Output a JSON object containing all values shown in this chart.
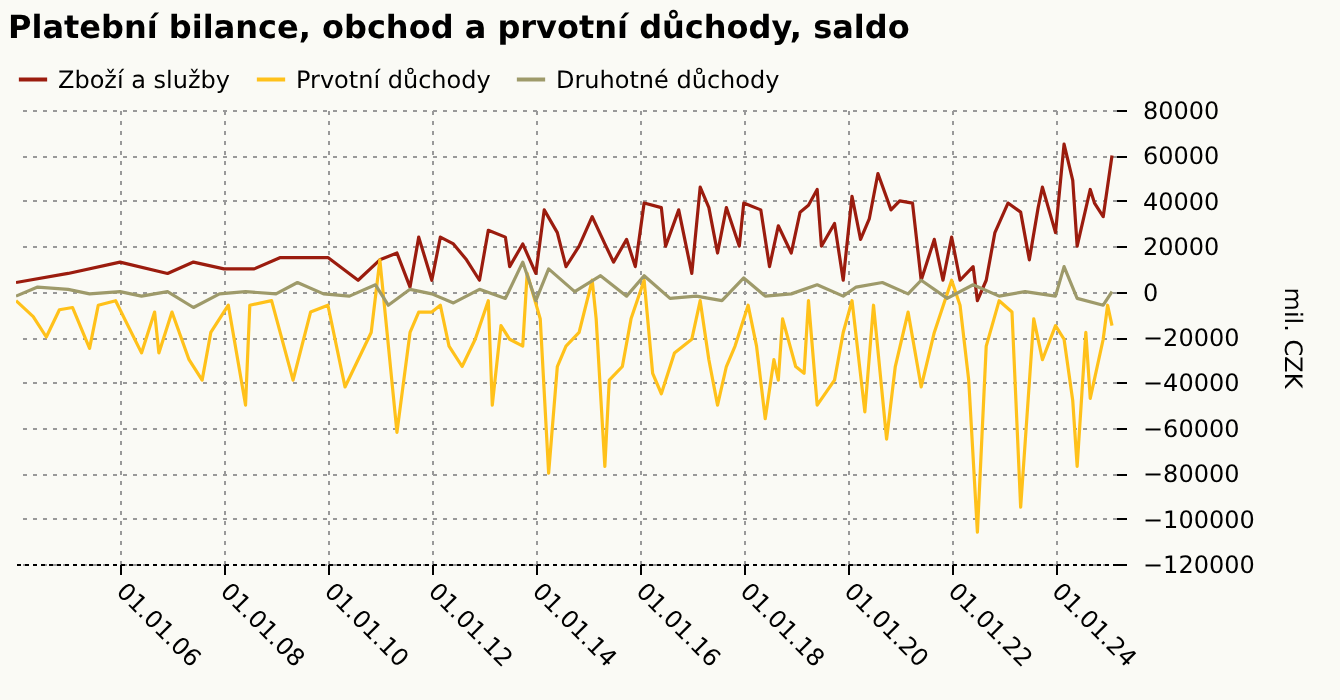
{
  "chart_data": {
    "type": "line",
    "title": "Platební bilance, obchod a prvotní důchody, saldo",
    "ylabel": "mil. CZK",
    "xlim": [
      "2004-01",
      "2025-03"
    ],
    "ylim": [
      -120000,
      80000
    ],
    "yticks": [
      -120000,
      -100000,
      -80000,
      -60000,
      -40000,
      -20000,
      0,
      20000,
      40000,
      60000,
      80000
    ],
    "xticks": [
      {
        "value": "2006-01-01",
        "label": "01.01.06"
      },
      {
        "value": "2008-01-01",
        "label": "01.01.08"
      },
      {
        "value": "2010-01-01",
        "label": "01.01.10"
      },
      {
        "value": "2012-01-01",
        "label": "01.01.12"
      },
      {
        "value": "2014-01-01",
        "label": "01.01.14"
      },
      {
        "value": "2016-01-01",
        "label": "01.01.16"
      },
      {
        "value": "2018-01-01",
        "label": "01.01.18"
      },
      {
        "value": "2020-01-01",
        "label": "01.01.20"
      },
      {
        "value": "2022-01-01",
        "label": "01.01.22"
      },
      {
        "value": "2024-01-01",
        "label": "01.01.24"
      }
    ],
    "grid": true,
    "legend": "top left",
    "line_style": "solid",
    "series": [
      {
        "name": "Zboží a služby",
        "color": "#9b1c0e",
        "x": [
          "2004-01",
          "2005-01",
          "2006-01",
          "2006-12",
          "2007-06",
          "2008-01",
          "2008-08",
          "2009-02",
          "2010-01",
          "2010-08",
          "2011-01",
          "2011-05",
          "2011-08",
          "2011-10",
          "2012-01",
          "2012-03",
          "2012-06",
          "2012-09",
          "2012-12",
          "2013-02",
          "2013-06",
          "2013-07",
          "2013-10",
          "2014-01",
          "2014-03",
          "2014-06",
          "2014-08",
          "2014-11",
          "2015-02",
          "2015-05",
          "2015-07",
          "2015-10",
          "2015-12",
          "2016-02",
          "2016-06",
          "2016-07",
          "2016-10",
          "2017-01",
          "2017-03",
          "2017-05",
          "2017-07",
          "2017-09",
          "2017-12",
          "2018-01",
          "2018-05",
          "2018-07",
          "2018-09",
          "2018-12",
          "2019-02",
          "2019-04",
          "2019-06",
          "2019-07",
          "2019-10",
          "2019-12",
          "2020-02",
          "2020-04",
          "2020-06",
          "2020-08",
          "2020-11",
          "2021-01",
          "2021-04",
          "2021-06",
          "2021-09",
          "2021-11",
          "2022-01",
          "2022-03",
          "2022-06",
          "2022-07",
          "2022-09",
          "2022-11",
          "2023-02",
          "2023-05",
          "2023-07",
          "2023-09",
          "2023-10",
          "2024-01",
          "2024-03",
          "2024-05",
          "2024-06",
          "2024-09",
          "2024-10",
          "2024-12",
          "2025-02"
        ],
        "values": [
          4000,
          8000,
          13000,
          8000,
          13000,
          10000,
          10000,
          15000,
          15000,
          5000,
          14000,
          17000,
          2000,
          24000,
          5000,
          24000,
          21000,
          14000,
          5000,
          27000,
          24000,
          11000,
          21000,
          8000,
          36000,
          26000,
          11000,
          20000,
          33000,
          21000,
          13000,
          23000,
          11000,
          39000,
          37000,
          20000,
          36000,
          8000,
          46000,
          37000,
          17000,
          37000,
          20000,
          39000,
          36000,
          11000,
          29000,
          17000,
          35000,
          38000,
          45000,
          20000,
          30000,
          5000,
          42000,
          23000,
          32000,
          52000,
          36000,
          40000,
          39000,
          5000,
          23000,
          5000,
          24000,
          5000,
          11000,
          -4000,
          5000,
          26000,
          39000,
          35000,
          14000,
          37000,
          46000,
          26000,
          65000,
          49000,
          20000,
          45000,
          39000,
          33000,
          60000
        ]
      },
      {
        "name": "Prvotní důchody",
        "color": "#ffc11a",
        "x": [
          "2004-01",
          "2004-05",
          "2004-08",
          "2004-11",
          "2005-02",
          "2005-06",
          "2005-08",
          "2005-12",
          "2006-06",
          "2006-09",
          "2006-10",
          "2007-01",
          "2007-05",
          "2007-08",
          "2007-10",
          "2008-02",
          "2008-06",
          "2008-07",
          "2008-12",
          "2009-05",
          "2009-09",
          "2010-01",
          "2010-05",
          "2010-08",
          "2010-11",
          "2011-01",
          "2011-05",
          "2011-08",
          "2011-10",
          "2012-01",
          "2012-03",
          "2012-05",
          "2012-08",
          "2012-11",
          "2013-02",
          "2013-03",
          "2013-05",
          "2013-07",
          "2013-10",
          "2013-11",
          "2014-02",
          "2014-04",
          "2014-06",
          "2014-08",
          "2014-11",
          "2015-02",
          "2015-03",
          "2015-05",
          "2015-06",
          "2015-09",
          "2015-11",
          "2016-02",
          "2016-04",
          "2016-06",
          "2016-09",
          "2017-01",
          "2017-03",
          "2017-05",
          "2017-07",
          "2017-09",
          "2017-11",
          "2018-02",
          "2018-04",
          "2018-06",
          "2018-08",
          "2018-09",
          "2018-10",
          "2019-01",
          "2019-03",
          "2019-04",
          "2019-06",
          "2019-10",
          "2019-12",
          "2020-02",
          "2020-05",
          "2020-07",
          "2020-10",
          "2020-12",
          "2021-03",
          "2021-06",
          "2021-09",
          "2022-01",
          "2022-03",
          "2022-05",
          "2022-07",
          "2022-09",
          "2022-12",
          "2023-03",
          "2023-05",
          "2023-08",
          "2023-10",
          "2024-01",
          "2024-03",
          "2024-05",
          "2024-06",
          "2024-08",
          "2024-09",
          "2024-12",
          "2025-01",
          "2025-02"
        ],
        "values": [
          -4000,
          -11000,
          -20000,
          -8000,
          -7000,
          -25000,
          -6000,
          -4000,
          -27000,
          -9000,
          -27000,
          -9000,
          -30000,
          -39000,
          -18000,
          -6000,
          -50000,
          -6000,
          -4000,
          -39000,
          -9000,
          -6000,
          -42000,
          -30000,
          -18000,
          14000,
          -62000,
          -18000,
          -9000,
          -9000,
          -6000,
          -24000,
          -33000,
          -21000,
          -4000,
          -50000,
          -15000,
          -21000,
          -24000,
          8000,
          -12000,
          -80000,
          -33000,
          -24000,
          -18000,
          5000,
          -12000,
          -77000,
          -39000,
          -33000,
          -12000,
          5000,
          -36000,
          -45000,
          -27000,
          -21000,
          -4000,
          -30000,
          -50000,
          -33000,
          -24000,
          -6000,
          -24000,
          -56000,
          -30000,
          -39000,
          -12000,
          -33000,
          -36000,
          -4000,
          -50000,
          -39000,
          -18000,
          -4000,
          -53000,
          -6000,
          -65000,
          -33000,
          -9000,
          -42000,
          -18000,
          5000,
          -6000,
          -39000,
          -106000,
          -24000,
          -4000,
          -9000,
          -95000,
          -12000,
          -30000,
          -15000,
          -21000,
          -48000,
          -77000,
          -18000,
          -47000,
          -21000,
          -6000,
          -15000
        ]
      },
      {
        "name": "Druhotné důchody",
        "color": "#9e9a6a",
        "x": [
          "2004-01",
          "2004-06",
          "2005-01",
          "2005-06",
          "2006-01",
          "2006-06",
          "2006-12",
          "2007-06",
          "2007-12",
          "2008-06",
          "2009-01",
          "2009-06",
          "2009-12",
          "2010-06",
          "2010-12",
          "2011-03",
          "2011-08",
          "2012-01",
          "2012-06",
          "2012-12",
          "2013-06",
          "2013-10",
          "2014-01",
          "2014-04",
          "2014-10",
          "2015-04",
          "2015-10",
          "2016-02",
          "2016-08",
          "2017-02",
          "2017-08",
          "2018-01",
          "2018-06",
          "2018-12",
          "2019-06",
          "2019-12",
          "2020-03",
          "2020-09",
          "2021-03",
          "2021-06",
          "2021-12",
          "2022-06",
          "2022-12",
          "2023-06",
          "2024-01",
          "2024-03",
          "2024-06",
          "2024-12",
          "2025-02"
        ],
        "values": [
          -2000,
          2000,
          1000,
          -1000,
          0,
          -2000,
          0,
          -7000,
          -1000,
          0,
          -1000,
          4000,
          -1000,
          -2000,
          3000,
          -6000,
          1000,
          -1000,
          -5000,
          1000,
          -3000,
          13000,
          -4000,
          10000,
          0,
          7000,
          -2000,
          7000,
          -3000,
          -2000,
          -4000,
          6000,
          -2000,
          -1000,
          3000,
          -2000,
          2000,
          4000,
          -1000,
          5000,
          -3000,
          3000,
          -2000,
          0,
          -2000,
          11000,
          -3000,
          -6000,
          0
        ]
      }
    ]
  }
}
